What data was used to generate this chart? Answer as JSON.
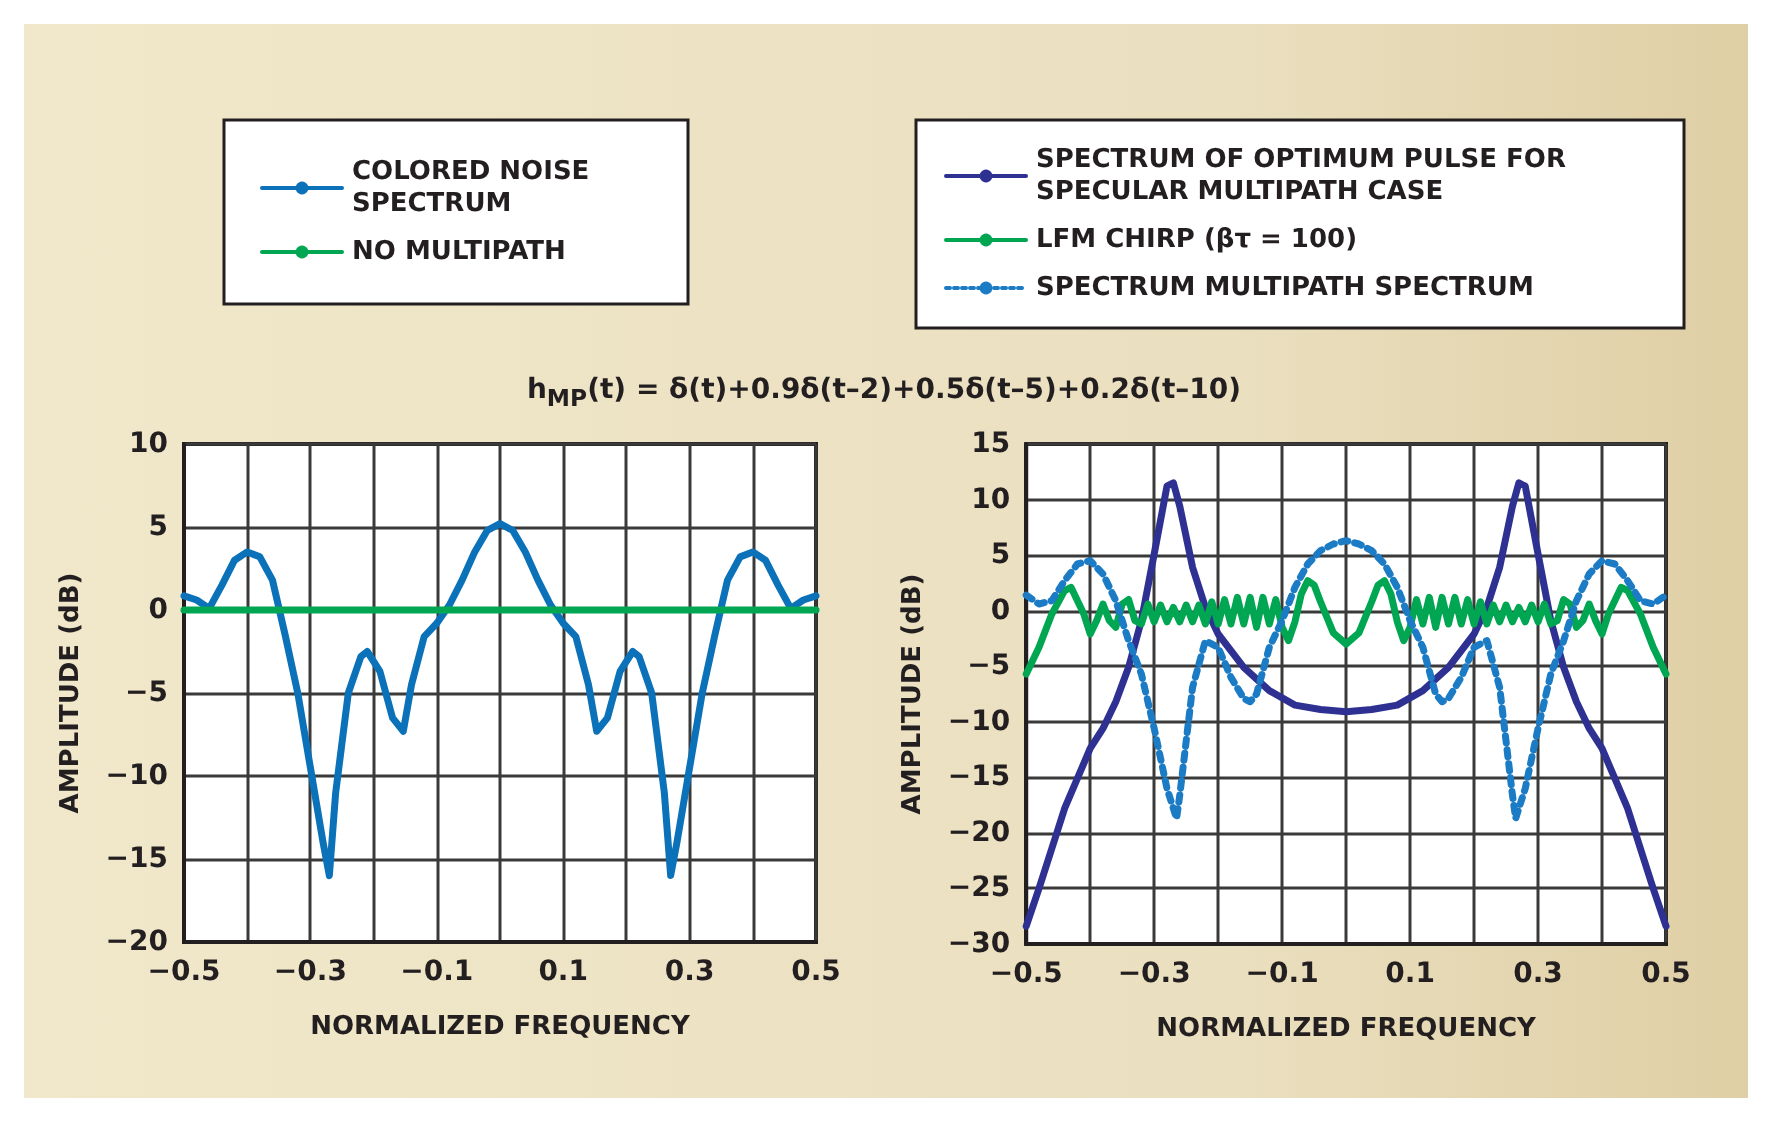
{
  "chart_data": [
    {
      "type": "line",
      "xlabel": "NORMALIZED FREQUENCY",
      "ylabel": "AMPLITUDE (dB)",
      "xlim": [
        -0.5,
        0.5
      ],
      "xticks": [
        -0.5,
        {
          "value": -0.4,
          "label": null
        },
        -0.3,
        {
          "value": -0.2,
          "label": null
        },
        -0.1,
        {
          "value": 0,
          "label": null
        },
        0.1,
        {
          "value": 0.2,
          "label": null
        },
        0.3,
        {
          "value": 0.4,
          "label": null
        },
        0.5
      ],
      "ylim": [
        -20,
        10
      ],
      "yticks": [
        -20,
        -15,
        -10,
        -5,
        0,
        5,
        10
      ],
      "grid": true,
      "legend": "top",
      "marker": "none",
      "series": [
        {
          "name": "COLORED NOISE SPECTRUM",
          "color": "#0b72b9",
          "line_style": "solid",
          "x": [
            -0.5,
            -0.48,
            -0.46,
            -0.44,
            -0.42,
            -0.4,
            -0.38,
            -0.36,
            -0.34,
            -0.32,
            -0.3,
            -0.28,
            -0.27,
            -0.26,
            -0.24,
            -0.22,
            -0.21,
            -0.19,
            -0.17,
            -0.153,
            -0.14,
            -0.12,
            -0.1,
            -0.08,
            -0.06,
            -0.04,
            -0.02,
            0,
            0.02,
            0.04,
            0.06,
            0.08,
            0.1,
            0.12,
            0.14,
            0.153,
            0.17,
            0.19,
            0.21,
            0.22,
            0.24,
            0.26,
            0.27,
            0.28,
            0.3,
            0.32,
            0.34,
            0.36,
            0.38,
            0.4,
            0.42,
            0.44,
            0.46,
            0.48,
            0.5
          ],
          "values": [
            0.85,
            0.6,
            0.1,
            1.5,
            3.0,
            3.5,
            3.2,
            1.8,
            -1.5,
            -5,
            -9.5,
            -14,
            -16,
            -11,
            -5,
            -2.8,
            -2.5,
            -3.7,
            -6.5,
            -7.3,
            -4.5,
            -1.6,
            -0.8,
            0.3,
            1.8,
            3.5,
            4.8,
            5.2,
            4.8,
            3.5,
            1.8,
            0.3,
            -0.8,
            -1.6,
            -4.5,
            -7.3,
            -6.5,
            -3.7,
            -2.5,
            -2.8,
            -5,
            -11,
            -16,
            -14,
            -9.5,
            -5,
            -1.5,
            1.8,
            3.2,
            3.5,
            3.0,
            1.5,
            0.1,
            0.6,
            0.85
          ]
        },
        {
          "name": "NO MULTIPATH",
          "color": "#00a651",
          "line_style": "solid",
          "x": [
            -0.5,
            0.5
          ],
          "values": [
            0,
            0
          ]
        }
      ]
    },
    {
      "type": "line",
      "title": "h$_{MP}$(t) = δ(t)+0.9δ(t–2)+0.5δ(t–5)+0.2δ(t–10)",
      "xlabel": "NORMALIZED FREQUENCY",
      "ylabel": "AMPLITUDE (dB)",
      "xlim": [
        -0.5,
        0.5
      ],
      "xticks": [
        -0.5,
        {
          "value": -0.4,
          "label": null
        },
        -0.3,
        {
          "value": -0.2,
          "label": null
        },
        -0.1,
        {
          "value": 0,
          "label": null
        },
        0.1,
        {
          "value": 0.2,
          "label": null
        },
        0.3,
        {
          "value": 0.4,
          "label": null
        },
        0.5
      ],
      "ylim": [
        -30,
        15
      ],
      "yticks": [
        -30,
        -25,
        -20,
        -15,
        -10,
        -5,
        0,
        5,
        10,
        15
      ],
      "grid": true,
      "legend": "top",
      "marker": "none",
      "series": [
        {
          "name": "SPECTRUM OF OPTIMUM PULSE FOR SPECULAR MULTIPATH CASE",
          "color": "#2e3192",
          "line_style": "solid",
          "x": [
            -0.5,
            -0.48,
            -0.46,
            -0.44,
            -0.42,
            -0.4,
            -0.38,
            -0.36,
            -0.34,
            -0.32,
            -0.3,
            -0.28,
            -0.27,
            -0.26,
            -0.24,
            -0.22,
            -0.2,
            -0.16,
            -0.12,
            -0.08,
            -0.04,
            0,
            0.04,
            0.08,
            0.12,
            0.16,
            0.2,
            0.22,
            0.24,
            0.26,
            0.27,
            0.28,
            0.3,
            0.32,
            0.34,
            0.36,
            0.38,
            0.4,
            0.42,
            0.44,
            0.46,
            0.48,
            0.5
          ],
          "values": [
            -28.4,
            -25,
            -21.4,
            -17.8,
            -15.1,
            -12.4,
            -10.6,
            -8.2,
            -5.1,
            -0.9,
            5.1,
            11.2,
            11.5,
            9.4,
            3.9,
            0.3,
            -2.1,
            -5.1,
            -7.2,
            -8.5,
            -8.9,
            -9.1,
            -8.9,
            -8.5,
            -7.2,
            -5.1,
            -2.1,
            0.3,
            3.9,
            9.4,
            11.5,
            11.2,
            5.1,
            -0.9,
            -5.1,
            -8.2,
            -10.6,
            -12.4,
            -15.1,
            -17.8,
            -21.4,
            -25,
            -28.4
          ]
        },
        {
          "name": "LFM CHIRP (βτ = 100)",
          "color": "#00a651",
          "line_style": "solid",
          "x": [
            -0.5,
            -0.48,
            -0.46,
            -0.44,
            -0.43,
            -0.41,
            -0.4,
            -0.39,
            -0.38,
            -0.37,
            -0.36,
            -0.35,
            -0.34,
            -0.33,
            -0.32,
            -0.31,
            -0.3,
            -0.29,
            -0.28,
            -0.27,
            -0.26,
            -0.25,
            -0.24,
            -0.23,
            -0.22,
            -0.21,
            -0.2,
            -0.19,
            -0.18,
            -0.17,
            -0.16,
            -0.15,
            -0.14,
            -0.13,
            -0.12,
            -0.11,
            -0.1,
            -0.09,
            -0.08,
            -0.07,
            -0.06,
            -0.05,
            -0.04,
            -0.02,
            0,
            0.02,
            0.04,
            0.05,
            0.06,
            0.07,
            0.08,
            0.09,
            0.1,
            0.11,
            0.12,
            0.13,
            0.14,
            0.15,
            0.16,
            0.17,
            0.18,
            0.19,
            0.2,
            0.21,
            0.22,
            0.23,
            0.24,
            0.25,
            0.26,
            0.27,
            0.28,
            0.29,
            0.3,
            0.31,
            0.32,
            0.33,
            0.34,
            0.35,
            0.36,
            0.37,
            0.38,
            0.39,
            0.4,
            0.41,
            0.43,
            0.44,
            0.46,
            0.48,
            0.5
          ],
          "values": [
            -5.7,
            -3.3,
            -0.3,
            1.8,
            2.1,
            -0.3,
            -2.1,
            -0.9,
            0.6,
            -0.9,
            -1.5,
            0.6,
            1,
            -0.9,
            -1.2,
            0.6,
            -1,
            0.5,
            -1,
            0.3,
            -1,
            0.5,
            -1,
            0.5,
            -1.2,
            0.8,
            -1.2,
            1,
            -1.2,
            1.2,
            -1.2,
            1.2,
            -1.5,
            1.2,
            -1.2,
            1,
            -1.5,
            -2.7,
            -1,
            1.5,
            2.7,
            2.3,
            0.8,
            -2,
            -3,
            -2,
            0.8,
            2.3,
            2.7,
            1.5,
            -1,
            -2.7,
            -1.5,
            1,
            -1.2,
            1.2,
            -1.5,
            1.2,
            -1.2,
            1.2,
            -1.2,
            1,
            -1.2,
            0.8,
            -1.2,
            0.5,
            -1,
            0.5,
            -1,
            0.3,
            -1,
            0.5,
            -1,
            0.6,
            -1.2,
            -0.9,
            1,
            0.6,
            -1.5,
            -0.9,
            0.6,
            -0.9,
            -2.1,
            -0.3,
            2.1,
            1.8,
            -0.3,
            -3.3,
            -5.7
          ]
        },
        {
          "name": "SPECTRUM MULTIPATH SPECTRUM",
          "color": "#1b7bc4",
          "line_style": "dotted",
          "x": [
            -0.5,
            -0.48,
            -0.46,
            -0.44,
            -0.42,
            -0.4,
            -0.38,
            -0.36,
            -0.34,
            -0.32,
            -0.3,
            -0.28,
            -0.265,
            -0.26,
            -0.24,
            -0.22,
            -0.2,
            -0.18,
            -0.16,
            -0.15,
            -0.14,
            -0.12,
            -0.1,
            -0.08,
            -0.06,
            -0.04,
            -0.02,
            0,
            0.02,
            0.04,
            0.06,
            0.08,
            0.1,
            0.12,
            0.14,
            0.15,
            0.16,
            0.18,
            0.2,
            0.22,
            0.24,
            0.26,
            0.265,
            0.28,
            0.3,
            0.32,
            0.34,
            0.36,
            0.38,
            0.4,
            0.42,
            0.44,
            0.46,
            0.48,
            0.5
          ],
          "values": [
            1.4,
            0.6,
            0.9,
            2.7,
            4.2,
            4.5,
            3.3,
            0.9,
            -2.7,
            -5.7,
            -10.6,
            -16,
            -18.7,
            -16.6,
            -6.9,
            -2.7,
            -3.3,
            -6,
            -7.9,
            -8.2,
            -7.5,
            -3.3,
            -0.9,
            2.1,
            4.2,
            5.4,
            6,
            6.3,
            6,
            5.4,
            4.2,
            2.1,
            -0.9,
            -3.3,
            -7.5,
            -8.2,
            -7.9,
            -6,
            -3.3,
            -2.7,
            -6.9,
            -16.6,
            -18.7,
            -16,
            -10.6,
            -5.7,
            -2.7,
            0.9,
            3.3,
            4.5,
            4.2,
            2.7,
            0.9,
            0.6,
            1.4
          ]
        }
      ]
    }
  ]
}
